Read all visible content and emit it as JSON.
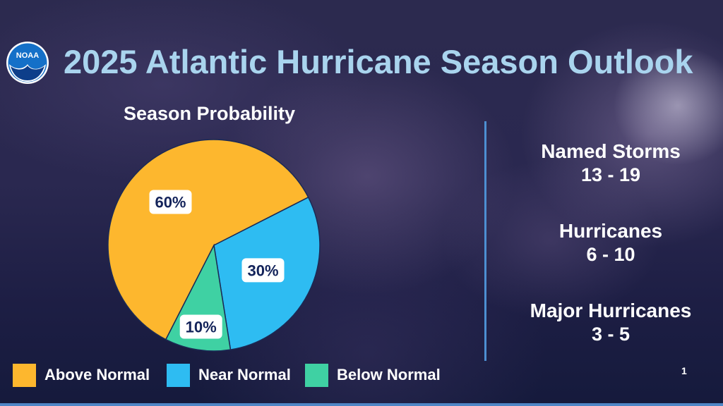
{
  "header": {
    "logo_text": "NOAA",
    "title": "2025 Atlantic Hurricane Season Outlook"
  },
  "colors": {
    "above_normal": "#fdb72e",
    "near_normal": "#2ebcf2",
    "below_normal": "#3fd1a3",
    "title": "#a9d4ee",
    "divider": "#4d8fd2"
  },
  "chart_data": {
    "type": "pie",
    "title": "Season Probability",
    "categories": [
      "Above Normal",
      "Near Normal",
      "Below Normal"
    ],
    "values": [
      60,
      30,
      10
    ],
    "labels": [
      "60%",
      "30%",
      "10%"
    ],
    "legend_position": "bottom"
  },
  "stats": [
    {
      "label": "Named Storms",
      "value": "13 - 19"
    },
    {
      "label": "Hurricanes",
      "value": "6 - 10"
    },
    {
      "label": "Major Hurricanes",
      "value": "3 - 5"
    }
  ],
  "page_number": "1"
}
